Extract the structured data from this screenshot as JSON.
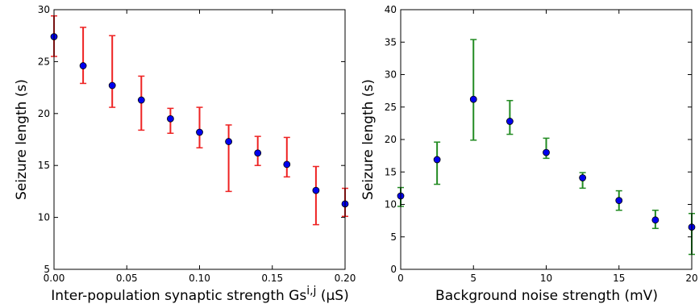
{
  "chart_data": [
    {
      "type": "scatter",
      "title": "",
      "xlabel_main": "Inter-population synaptic strength Gs",
      "xlabel_sup": "i,j",
      "xlabel_unit": " (μS)",
      "ylabel": "Seizure length (s)",
      "xlim": [
        0,
        0.2
      ],
      "ylim": [
        5,
        30
      ],
      "xticks": [
        "0.00",
        "0.05",
        "0.10",
        "0.15",
        "0.20"
      ],
      "yticks": [
        "5",
        "10",
        "15",
        "20",
        "25",
        "30"
      ],
      "xtick_values": [
        0,
        0.05,
        0.1,
        0.15,
        0.2
      ],
      "ytick_values": [
        5,
        10,
        15,
        20,
        25,
        30
      ],
      "marker_color": "#0000ee",
      "errorbar_color": "#ee2222",
      "x": [
        0,
        0.02,
        0.04,
        0.06,
        0.08,
        0.1,
        0.12,
        0.14,
        0.16,
        0.18,
        0.2
      ],
      "y": [
        27.4,
        24.6,
        22.7,
        21.3,
        19.5,
        18.2,
        17.3,
        16.2,
        15.1,
        12.6,
        11.3
      ],
      "err_low": [
        25.5,
        22.9,
        20.6,
        18.4,
        18.1,
        16.7,
        12.5,
        15.0,
        13.9,
        9.3,
        10.1
      ],
      "err_high": [
        29.4,
        28.3,
        27.5,
        23.6,
        20.5,
        20.6,
        18.9,
        17.8,
        17.7,
        14.9,
        12.8
      ]
    },
    {
      "type": "scatter",
      "title": "",
      "xlabel": "Background noise strength (mV)",
      "ylabel": "Seizure length (s)",
      "xlim": [
        0,
        20
      ],
      "ylim": [
        0,
        40
      ],
      "xticks": [
        "0",
        "5",
        "10",
        "15",
        "20"
      ],
      "yticks": [
        "0",
        "5",
        "10",
        "15",
        "20",
        "25",
        "30",
        "35",
        "40"
      ],
      "xtick_values": [
        0,
        5,
        10,
        15,
        20
      ],
      "ytick_values": [
        0,
        5,
        10,
        15,
        20,
        25,
        30,
        35,
        40
      ],
      "marker_color": "#0000ee",
      "errorbar_color": "#228b22",
      "x": [
        0,
        2.5,
        5,
        7.5,
        10,
        12.5,
        15,
        17.5,
        20
      ],
      "y": [
        11.3,
        16.9,
        26.2,
        22.8,
        18.0,
        14.1,
        10.6,
        7.6,
        6.5
      ],
      "err_low": [
        9.7,
        13.1,
        19.9,
        20.8,
        17.1,
        12.5,
        9.1,
        6.3,
        2.3
      ],
      "err_high": [
        12.6,
        19.6,
        35.4,
        26.0,
        20.2,
        14.9,
        12.1,
        9.1,
        8.6
      ]
    }
  ]
}
